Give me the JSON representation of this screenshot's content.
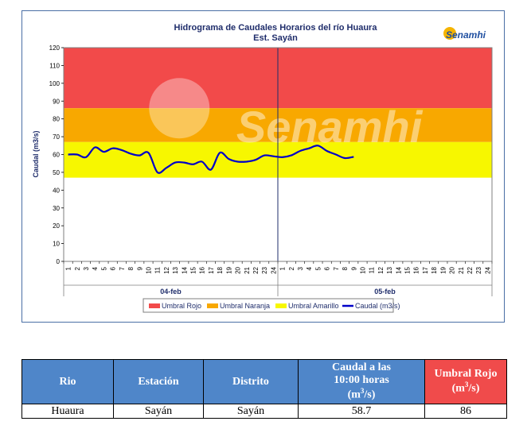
{
  "chart_data": {
    "type": "line",
    "title": "Hidrograma de Caudales Horarios del río Huaura",
    "subtitle": "Est. Sayán",
    "ylabel": "Caudal  (m3/s)",
    "ylim": [
      0,
      120
    ],
    "yticks": [
      0,
      10,
      20,
      30,
      40,
      50,
      60,
      70,
      80,
      90,
      100,
      110,
      120
    ],
    "x_hour_labels": [
      "1",
      "2",
      "3",
      "4",
      "5",
      "6",
      "7",
      "8",
      "9",
      "10",
      "11",
      "12",
      "13",
      "14",
      "15",
      "16",
      "17",
      "18",
      "19",
      "20",
      "21",
      "22",
      "23",
      "24",
      "1",
      "2",
      "3",
      "4",
      "5",
      "6",
      "7",
      "8",
      "9",
      "10",
      "11",
      "12",
      "13",
      "14",
      "15",
      "16",
      "17",
      "18",
      "19",
      "20",
      "21",
      "22",
      "23",
      "24"
    ],
    "day_labels": [
      "04-feb",
      "05-feb"
    ],
    "bands": [
      {
        "name": "Umbral Rojo",
        "from": 86,
        "to": 120,
        "color": "#f24a4a"
      },
      {
        "name": "Umbral Naranja",
        "from": 67,
        "to": 86,
        "color": "#f8a800"
      },
      {
        "name": "Umbral Amarillo",
        "from": 47,
        "to": 67,
        "color": "#f7f700"
      }
    ],
    "series": [
      {
        "name": "Caudal (m3/s)",
        "color": "#0000c8",
        "x": [
          1,
          2,
          3,
          4,
          5,
          6,
          7,
          8,
          9,
          10,
          11,
          12,
          13,
          14,
          15,
          16,
          17,
          18,
          19,
          20,
          21,
          22,
          23,
          24,
          25,
          26,
          27,
          28,
          29,
          30,
          31,
          32,
          33
        ],
        "values": [
          60,
          60,
          58.5,
          64,
          61.5,
          63.5,
          62.5,
          60.5,
          59.5,
          61,
          50,
          52.5,
          55.5,
          55.5,
          54.5,
          56,
          51.5,
          61,
          57.5,
          56,
          56,
          57,
          59.5,
          59,
          58.5,
          59.5,
          62,
          63.5,
          65,
          62,
          60,
          58,
          58.7
        ]
      }
    ],
    "legend_position": "bottom",
    "grid": false,
    "watermark": "Senamhi",
    "logo_text": "Senamhi"
  },
  "table": {
    "headers": [
      "Rio",
      "Estación",
      "Distrito",
      "Caudal a las 10:00 horas (m3/s)",
      "Umbral Rojo (m3/s)"
    ],
    "h4_line1": "Caudal a las",
    "h4_line2": "10:00 horas",
    "h4_unit": "(m",
    "h5_line1": "Umbral Rojo",
    "h5_unit": "(m",
    "sup3": "3",
    "unit_close": "/s)",
    "row": [
      "Huaura",
      "Sayán",
      "Sayán",
      "58.7",
      "86"
    ]
  }
}
